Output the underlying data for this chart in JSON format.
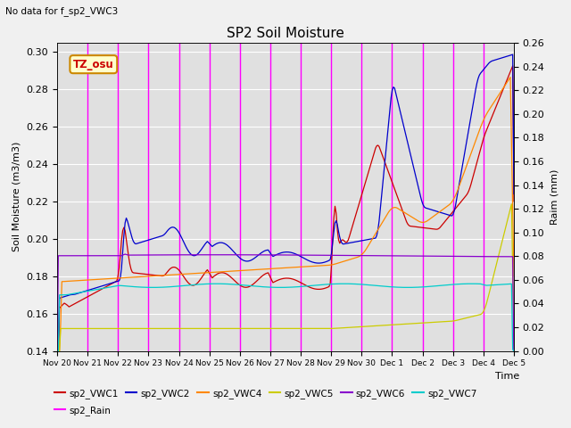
{
  "title": "SP2 Soil Moisture",
  "no_data_text": "No data for f_sp2_VWC3",
  "ylabel_left": "Soil Moisture (m3/m3)",
  "ylabel_right": "Raim (mm)",
  "xlabel": "Time",
  "ylim_left": [
    0.14,
    0.305
  ],
  "ylim_right": [
    0.0,
    0.26
  ],
  "yticks_left": [
    0.14,
    0.16,
    0.18,
    0.2,
    0.22,
    0.24,
    0.26,
    0.28,
    0.3
  ],
  "yticks_right": [
    0.0,
    0.02,
    0.04,
    0.06,
    0.08,
    0.1,
    0.12,
    0.14,
    0.16,
    0.18,
    0.2,
    0.22,
    0.24,
    0.26
  ],
  "tz_label": "TZ_osu",
  "background_color": "#e0e0e0",
  "grid_color": "#ffffff",
  "vline_color": "#ff00ff",
  "colors": {
    "sp2_VWC1": "#cc0000",
    "sp2_VWC2": "#0000cc",
    "sp2_VWC4": "#ff8800",
    "sp2_VWC5": "#cccc00",
    "sp2_VWC6": "#8800cc",
    "sp2_VWC7": "#00cccc",
    "sp2_Rain": "#ff00ff"
  },
  "x_tick_labels": [
    "Nov 20",
    "Nov 21",
    "Nov 22",
    "Nov 23",
    "Nov 24",
    "Nov 25",
    "Nov 26",
    "Nov 27",
    "Nov 28",
    "Nov 29",
    "Nov 30",
    "Dec 1",
    "Dec 2",
    "Dec 3",
    "Dec 4",
    "Dec 5"
  ]
}
